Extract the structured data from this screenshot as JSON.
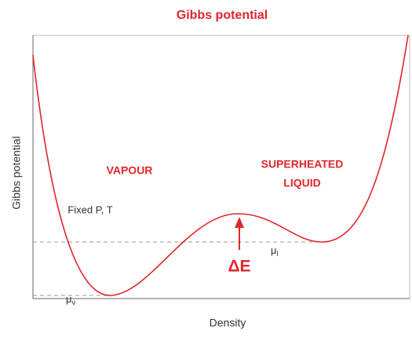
{
  "title": "Gibbs potential",
  "axes": {
    "y_label": "Gibbs potential",
    "x_label": "Density"
  },
  "annotations": {
    "vapour": "VAPOUR",
    "liquid": [
      "SUPERHEATED",
      "LIQUID"
    ],
    "conditions": "Fixed P, T",
    "barrier": "ΔE",
    "mu_l": {
      "symbol": "μ",
      "subscript": "l"
    },
    "mu_v": {
      "symbol": "μ",
      "subscript": "v"
    }
  }
}
